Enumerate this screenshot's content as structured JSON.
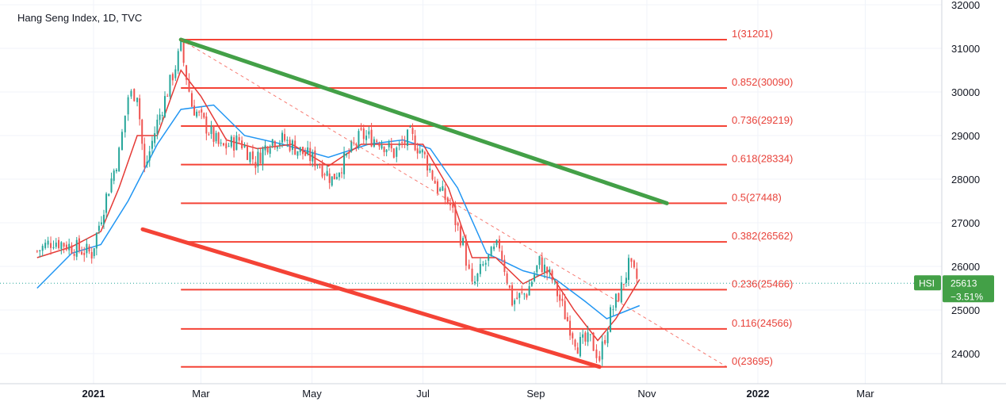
{
  "chart_data": {
    "type": "candlestick",
    "title": "Hang Seng Index, 1D, TVC",
    "symbol": "HSI",
    "last_price": "25613",
    "change": "−3.51%",
    "colors": {
      "up": "#26a69a",
      "down": "#ef5350",
      "fib": "#f44336",
      "green_trendline": "#43a047",
      "red_trendline": "#f44336",
      "ma_fast": "#e53935",
      "ma_slow": "#2196f3",
      "badge": "#43a047"
    },
    "ylim": [
      23400,
      32000
    ],
    "y_ticks": [
      "32000",
      "31000",
      "30000",
      "29000",
      "28000",
      "27000",
      "26000",
      "25000",
      "24000"
    ],
    "x_ticks": [
      {
        "label": "2021",
        "date": "2021-01-01",
        "bold": true
      },
      {
        "label": "Mar",
        "date": "2021-03-01",
        "bold": false
      },
      {
        "label": "May",
        "date": "2021-05-01",
        "bold": false
      },
      {
        "label": "Jul",
        "date": "2021-07-01",
        "bold": false
      },
      {
        "label": "Sep",
        "date": "2021-09-01",
        "bold": false
      },
      {
        "label": "Nov",
        "date": "2021-11-01",
        "bold": false
      },
      {
        "label": "2022",
        "date": "2022-01-01",
        "bold": true
      },
      {
        "label": "Mar",
        "date": "2022-03-01",
        "bold": false
      }
    ],
    "fib_levels": [
      {
        "label": "1(31201)",
        "value": 31201
      },
      {
        "label": "0.852(30090)",
        "value": 30090
      },
      {
        "label": "0.736(29219)",
        "value": 29219
      },
      {
        "label": "0.618(28334)",
        "value": 28334
      },
      {
        "label": "0.5(27448)",
        "value": 27448
      },
      {
        "label": "0.382(26562)",
        "value": 26562
      },
      {
        "label": "0.236(25466)",
        "value": 25466
      },
      {
        "label": "0.116(24566)",
        "value": 24566
      },
      {
        "label": "0(23695)",
        "value": 23695
      }
    ],
    "fib_range": {
      "from": "2021-02-18",
      "to": "2021-12-15"
    },
    "trendlines": [
      {
        "name": "upper",
        "color": "green",
        "from": {
          "date": "2021-02-18",
          "value": 31201
        },
        "to": {
          "date": "2021-11-12",
          "value": 27448
        }
      },
      {
        "name": "lower",
        "color": "red",
        "from": {
          "date": "2021-01-28",
          "value": 26850
        },
        "to": {
          "date": "2021-10-06",
          "value": 23695
        }
      },
      {
        "name": "dashed",
        "color": "red",
        "from": {
          "date": "2021-02-18",
          "value": 31201
        },
        "to": {
          "date": "2021-12-15",
          "value": 23695
        }
      }
    ],
    "series_close": [
      [
        "2020-12-01",
        26350
      ],
      [
        "2020-12-10",
        26600
      ],
      [
        "2020-12-20",
        26450
      ],
      [
        "2020-12-31",
        26300
      ],
      [
        "2021-01-08",
        27600
      ],
      [
        "2021-01-15",
        28600
      ],
      [
        "2021-01-20",
        29900
      ],
      [
        "2021-01-25",
        30000
      ],
      [
        "2021-01-29",
        28200
      ],
      [
        "2021-02-05",
        29300
      ],
      [
        "2021-02-12",
        30200
      ],
      [
        "2021-02-18",
        31000
      ],
      [
        "2021-02-24",
        29700
      ],
      [
        "2021-03-04",
        29200
      ],
      [
        "2021-03-12",
        28700
      ],
      [
        "2021-03-22",
        28900
      ],
      [
        "2021-03-31",
        28400
      ],
      [
        "2021-04-08",
        28900
      ],
      [
        "2021-04-16",
        28900
      ],
      [
        "2021-04-26",
        28600
      ],
      [
        "2021-05-04",
        28400
      ],
      [
        "2021-05-12",
        28000
      ],
      [
        "2021-05-20",
        28500
      ],
      [
        "2021-05-28",
        29000
      ],
      [
        "2021-06-07",
        28900
      ],
      [
        "2021-06-15",
        28600
      ],
      [
        "2021-06-24",
        29000
      ],
      [
        "2021-07-02",
        28500
      ],
      [
        "2021-07-09",
        27800
      ],
      [
        "2021-07-16",
        27400
      ],
      [
        "2021-07-23",
        26500
      ],
      [
        "2021-07-28",
        25500
      ],
      [
        "2021-08-03",
        26000
      ],
      [
        "2021-08-12",
        26500
      ],
      [
        "2021-08-19",
        25200
      ],
      [
        "2021-08-27",
        25400
      ],
      [
        "2021-09-03",
        26100
      ],
      [
        "2021-09-10",
        25700
      ],
      [
        "2021-09-17",
        24900
      ],
      [
        "2021-09-24",
        24200
      ],
      [
        "2021-10-01",
        24300
      ],
      [
        "2021-10-06",
        23900
      ],
      [
        "2021-10-12",
        24900
      ],
      [
        "2021-10-18",
        25500
      ],
      [
        "2021-10-22",
        26000
      ],
      [
        "2021-10-28",
        25613
      ]
    ],
    "ma_fast": [
      [
        "2020-12-01",
        26200
      ],
      [
        "2020-12-20",
        26450
      ],
      [
        "2021-01-05",
        26800
      ],
      [
        "2021-01-15",
        27800
      ],
      [
        "2021-01-25",
        29000
      ],
      [
        "2021-02-05",
        29000
      ],
      [
        "2021-02-18",
        30500
      ],
      [
        "2021-03-01",
        29900
      ],
      [
        "2021-03-15",
        28900
      ],
      [
        "2021-04-01",
        28700
      ],
      [
        "2021-04-20",
        28800
      ],
      [
        "2021-05-10",
        28300
      ],
      [
        "2021-05-28",
        28800
      ],
      [
        "2021-06-15",
        28800
      ],
      [
        "2021-07-01",
        28800
      ],
      [
        "2021-07-15",
        27800
      ],
      [
        "2021-07-28",
        26200
      ],
      [
        "2021-08-10",
        26200
      ],
      [
        "2021-08-25",
        25600
      ],
      [
        "2021-09-08",
        25900
      ],
      [
        "2021-09-22",
        25000
      ],
      [
        "2021-10-05",
        24300
      ],
      [
        "2021-10-15",
        24800
      ],
      [
        "2021-10-28",
        25700
      ]
    ],
    "ma_slow": [
      [
        "2020-12-01",
        25500
      ],
      [
        "2020-12-20",
        26300
      ],
      [
        "2021-01-05",
        26500
      ],
      [
        "2021-01-20",
        27500
      ],
      [
        "2021-02-05",
        28800
      ],
      [
        "2021-02-18",
        29600
      ],
      [
        "2021-03-08",
        29700
      ],
      [
        "2021-03-25",
        29000
      ],
      [
        "2021-04-15",
        28800
      ],
      [
        "2021-05-10",
        28500
      ],
      [
        "2021-06-01",
        28800
      ],
      [
        "2021-06-20",
        28900
      ],
      [
        "2021-07-05",
        28700
      ],
      [
        "2021-07-20",
        27800
      ],
      [
        "2021-08-05",
        26300
      ],
      [
        "2021-08-25",
        25900
      ],
      [
        "2021-09-12",
        25700
      ],
      [
        "2021-09-28",
        25200
      ],
      [
        "2021-10-10",
        24800
      ],
      [
        "2021-10-28",
        25100
      ]
    ]
  }
}
